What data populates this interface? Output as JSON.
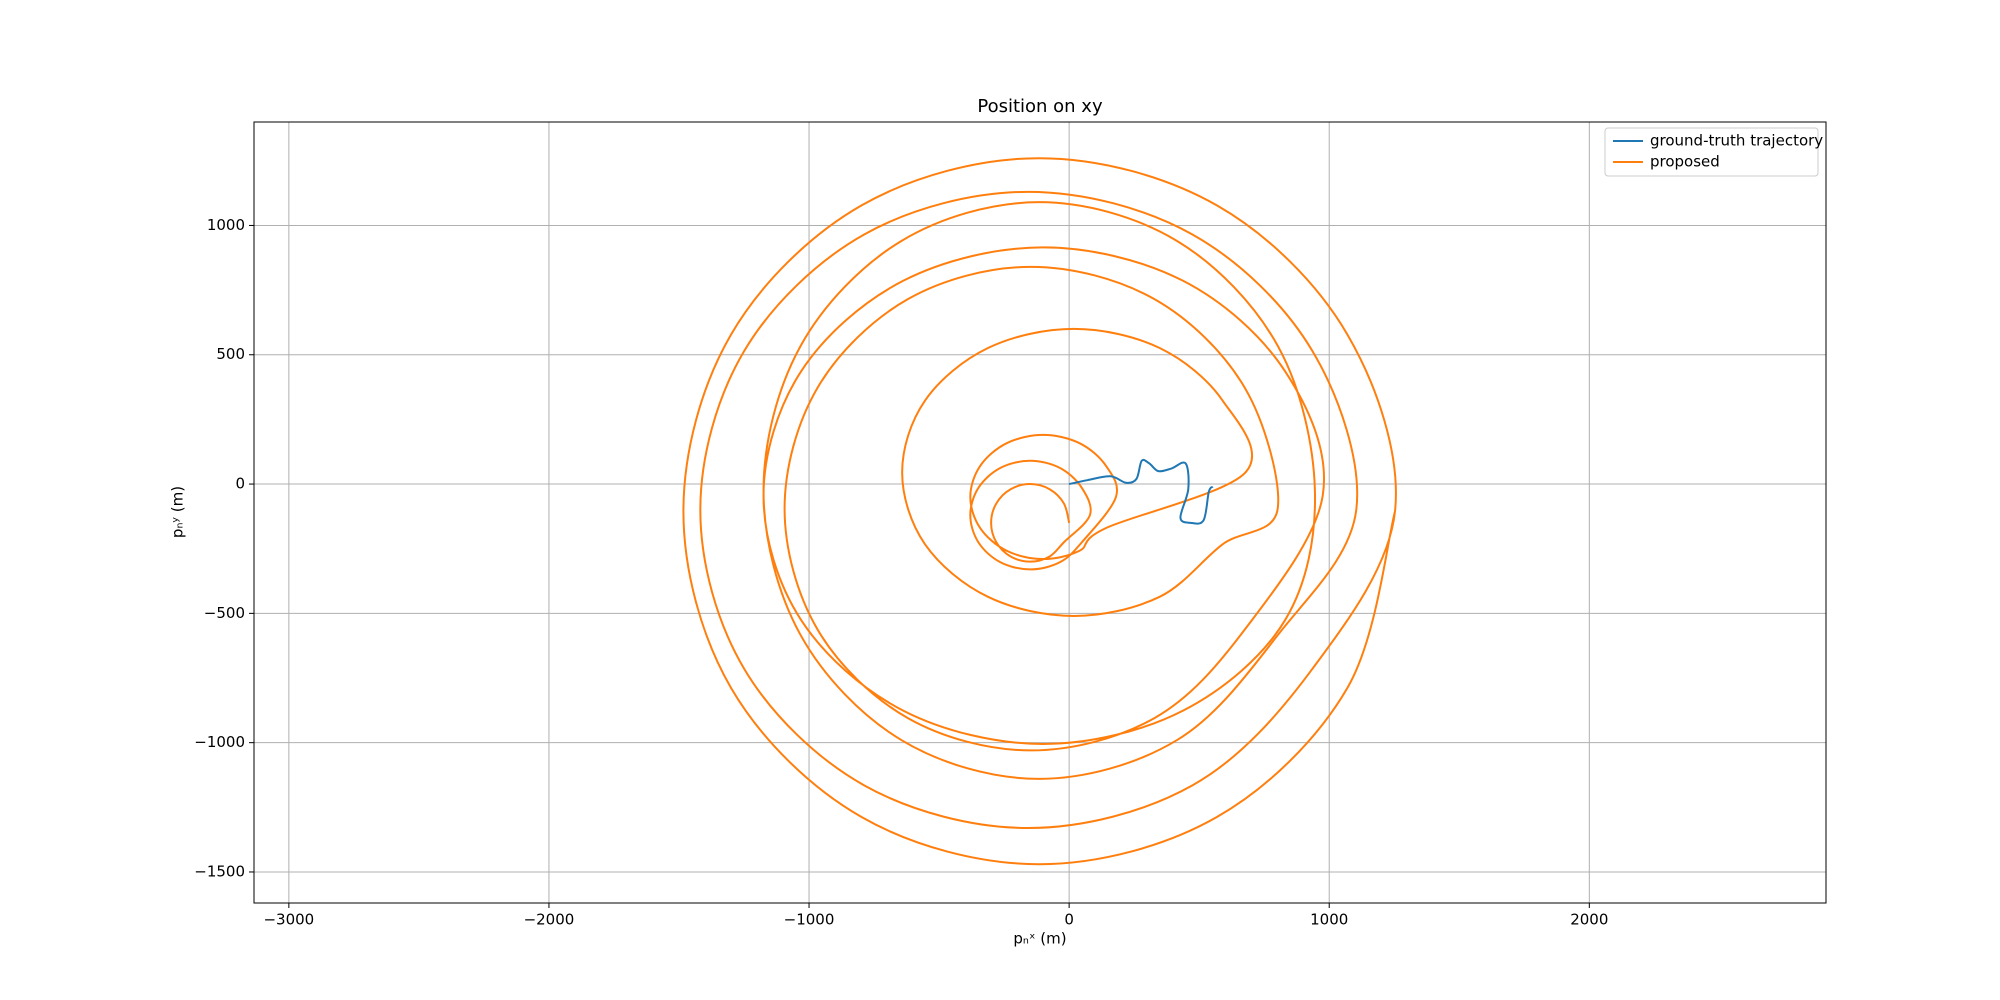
{
  "chart_data": {
    "type": "line",
    "title": "Position on xy",
    "xlabel": "pₙˣ (m)",
    "ylabel": "pₙʸ (m)",
    "xlim": [
      -3134,
      2910
    ],
    "ylim": [
      -1620,
      1400
    ],
    "xticks": [
      {
        "value": -3000,
        "label": "−3000"
      },
      {
        "value": -2000,
        "label": "−2000"
      },
      {
        "value": -1000,
        "label": "−1000"
      },
      0,
      1000,
      2000
    ],
    "yticks": [
      {
        "value": -1500,
        "label": "−1500"
      },
      {
        "value": -1000,
        "label": "−1000"
      },
      {
        "value": -500,
        "label": "−500"
      },
      0,
      500,
      1000
    ],
    "grid": true,
    "legend": "upper right",
    "series": [
      {
        "name": "ground-truth trajectory",
        "color": "#1f77b4",
        "x": [
          0,
          70,
          159,
          219,
          259,
          279,
          308,
          343,
          393,
          448,
          458,
          428,
          468,
          517,
          537,
          552
        ],
        "values": [
          0,
          15,
          30,
          5,
          20,
          90,
          80,
          50,
          60,
          80,
          -20,
          -130,
          -150,
          -140,
          -30,
          -10
        ]
      },
      {
        "name": "proposed",
        "color": "#ff7f0e",
        "x": [
          0,
          -20,
          -75,
          -150,
          -225,
          -280,
          -300,
          -280,
          -225,
          -150,
          -75,
          -20,
          80,
          49,
          -35,
          -150,
          -265,
          -349,
          -380,
          -349,
          -265,
          -150,
          -35,
          49,
          180,
          142,
          40,
          -100,
          -240,
          -342,
          -380,
          -342,
          -240,
          -100,
          40,
          142,
          678,
          590,
          348,
          18,
          -312,
          -554,
          -642,
          -554,
          -312,
          18,
          348,
          590,
          802,
          675,
          328,
          -146,
          -620,
          -967,
          -1094,
          -967,
          -620,
          -146,
          328,
          675,
          975,
          831,
          438,
          -100,
          -638,
          -1031,
          -1175,
          -1031,
          -638,
          -100,
          438,
          831,
          945,
          803,
          415,
          -115,
          -645,
          -1033,
          -1175,
          -1033,
          -645,
          -115,
          415,
          803,
          1104,
          935,
          474,
          -157,
          -788,
          -1249,
          -1418,
          -1249,
          -788,
          -157,
          474,
          935,
          1253,
          1070,
          569,
          -115,
          -799,
          -1300,
          -1483,
          -1300,
          -799,
          -115,
          569,
          1070,
          1253
        ],
        "values": [
          -150,
          -75,
          -20,
          0,
          -20,
          -75,
          -150,
          -225,
          -280,
          -300,
          -280,
          -225,
          -120,
          -15,
          62,
          90,
          62,
          -15,
          -120,
          -225,
          -302,
          -330,
          -302,
          -225,
          -50,
          70,
          158,
          190,
          158,
          70,
          -50,
          -170,
          -258,
          -290,
          -258,
          -170,
          45,
          323,
          526,
          600,
          526,
          323,
          45,
          -233,
          -436,
          -510,
          -436,
          -233,
          -95,
          373,
          715,
          840,
          715,
          373,
          -95,
          -563,
          -905,
          -1030,
          -905,
          -563,
          -45,
          435,
          786,
          915,
          786,
          435,
          -45,
          -525,
          -876,
          -1005,
          -876,
          -525,
          -25,
          533,
          940,
          1090,
          940,
          533,
          -25,
          -583,
          -990,
          -1140,
          -990,
          -583,
          -100,
          515,
          965,
          1130,
          965,
          515,
          -100,
          -715,
          -1165,
          -1330,
          -1165,
          -715,
          -105,
          578,
          1077,
          1260,
          1077,
          578,
          -105,
          -788,
          -1287,
          -1470,
          -1287,
          -788,
          -105
        ]
      }
    ]
  }
}
